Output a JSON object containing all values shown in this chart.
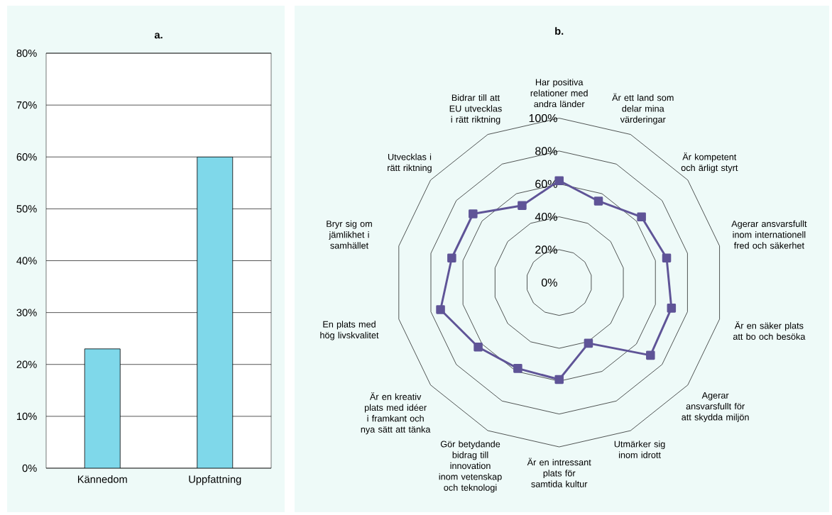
{
  "chart_data": [
    {
      "type": "bar",
      "title": "a.",
      "categories": [
        "Kännedom",
        "Uppfattning"
      ],
      "values": [
        23,
        60
      ],
      "color": "#7fd8ea",
      "ylim": [
        0,
        80
      ],
      "grid": "y",
      "yticks": [
        {
          "value": 0,
          "label": "0%"
        },
        {
          "value": 10,
          "label": "10%"
        },
        {
          "value": 20,
          "label": "20%"
        },
        {
          "value": 30,
          "label": "30%"
        },
        {
          "value": 40,
          "label": "40%"
        },
        {
          "value": 50,
          "label": "50%"
        },
        {
          "value": 60,
          "label": "60%"
        },
        {
          "value": 70,
          "label": "70%"
        },
        {
          "value": 80,
          "label": "80%"
        }
      ]
    },
    {
      "type": "radar",
      "title": "b.",
      "grid": true,
      "marker": "square",
      "ylim": [
        0,
        100
      ],
      "categories": [
        "Har positiva relationer med andra länder",
        "Är ett land som delar mina värderingar",
        "Är kompetent och ärligt styrt",
        "Agerar ansvarsfullt inom internationell fred och säkerhet",
        "Är en säker plats att bo och besöka",
        "Agerar ansvarsfullt för att skydda miljön",
        "Utmärker sig inom idrott",
        "Är en intressant plats för samtida kultur",
        "Gör betydande bidrag till innovation inom vetenskap och teknologi",
        "Är en kreativ plats med idéer i framkant och nya sätt att tänka",
        "En plats med hög livskvalitet",
        "Bryr sig om jämlikhet i samhället",
        "Utvecklas i rätt riktning",
        "Bidrar till att EU utvecklas i rätt riktning"
      ],
      "yticks": [
        {
          "value": 0,
          "label": "0%"
        },
        {
          "value": 20,
          "label": "20%"
        },
        {
          "value": 40,
          "label": "40%"
        },
        {
          "value": 60,
          "label": "60%"
        },
        {
          "value": 80,
          "label": "80%"
        },
        {
          "value": 100,
          "label": "100%"
        }
      ],
      "series": [
        {
          "color": "#5f5497",
          "values": [
            62,
            55,
            64,
            67,
            70,
            71,
            41,
            59,
            58,
            63,
            74,
            67,
            67,
            52
          ]
        }
      ]
    }
  ]
}
